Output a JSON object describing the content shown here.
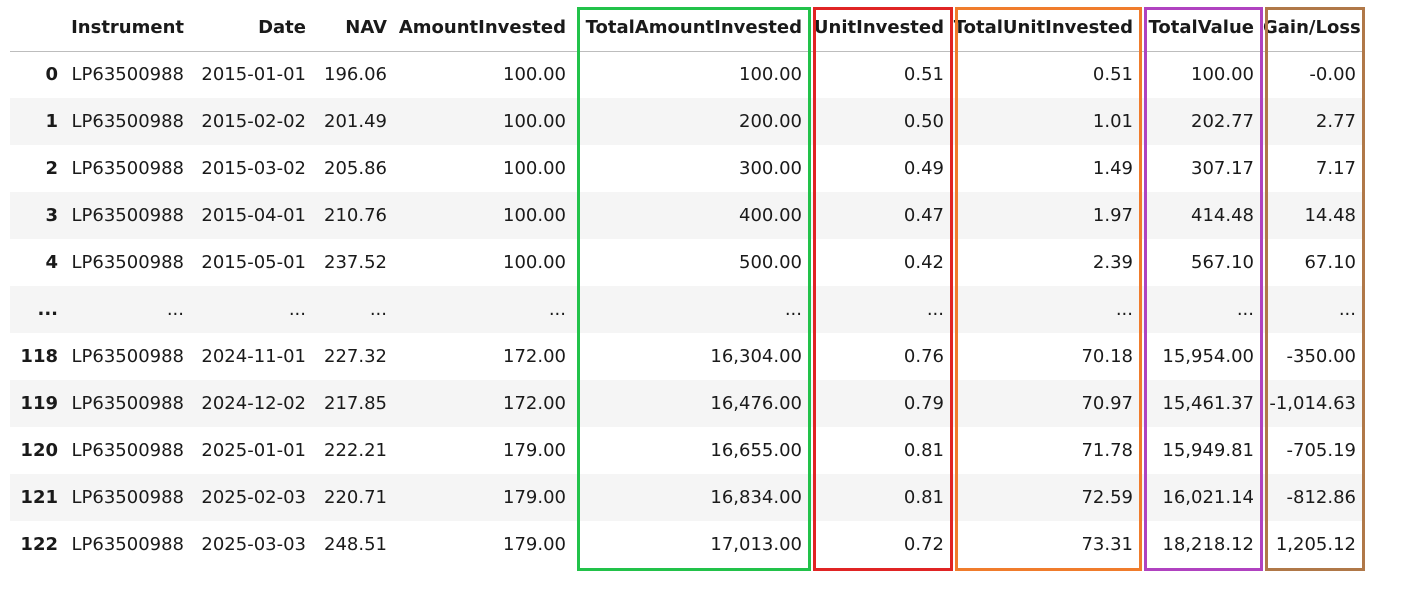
{
  "columns": [
    "",
    "Instrument",
    "Date",
    "NAV",
    "AmountInvested",
    "TotalAmountInvested",
    "UnitInvested",
    "TotalUnitInvested",
    "TotalValue",
    "Gain/Loss"
  ],
  "rows": [
    {
      "index": "0",
      "cells": [
        "LP63500988",
        "2015-01-01",
        "196.06",
        "100.00",
        "100.00",
        "0.51",
        "0.51",
        "100.00",
        "-0.00"
      ]
    },
    {
      "index": "1",
      "cells": [
        "LP63500988",
        "2015-02-02",
        "201.49",
        "100.00",
        "200.00",
        "0.50",
        "1.01",
        "202.77",
        "2.77"
      ]
    },
    {
      "index": "2",
      "cells": [
        "LP63500988",
        "2015-03-02",
        "205.86",
        "100.00",
        "300.00",
        "0.49",
        "1.49",
        "307.17",
        "7.17"
      ]
    },
    {
      "index": "3",
      "cells": [
        "LP63500988",
        "2015-04-01",
        "210.76",
        "100.00",
        "400.00",
        "0.47",
        "1.97",
        "414.48",
        "14.48"
      ]
    },
    {
      "index": "4",
      "cells": [
        "LP63500988",
        "2015-05-01",
        "237.52",
        "100.00",
        "500.00",
        "0.42",
        "2.39",
        "567.10",
        "67.10"
      ]
    },
    {
      "index": "...",
      "cells": [
        "...",
        "...",
        "...",
        "...",
        "...",
        "...",
        "...",
        "...",
        "..."
      ]
    },
    {
      "index": "118",
      "cells": [
        "LP63500988",
        "2024-11-01",
        "227.32",
        "172.00",
        "16,304.00",
        "0.76",
        "70.18",
        "15,954.00",
        "-350.00"
      ]
    },
    {
      "index": "119",
      "cells": [
        "LP63500988",
        "2024-12-02",
        "217.85",
        "172.00",
        "16,476.00",
        "0.79",
        "70.97",
        "15,461.37",
        "-1,014.63"
      ]
    },
    {
      "index": "120",
      "cells": [
        "LP63500988",
        "2025-01-01",
        "222.21",
        "179.00",
        "16,655.00",
        "0.81",
        "71.78",
        "15,949.81",
        "-705.19"
      ]
    },
    {
      "index": "121",
      "cells": [
        "LP63500988",
        "2025-02-03",
        "220.71",
        "179.00",
        "16,834.00",
        "0.81",
        "72.59",
        "16,021.14",
        "-812.86"
      ]
    },
    {
      "index": "122",
      "cells": [
        "LP63500988",
        "2025-03-03",
        "248.51",
        "179.00",
        "17,013.00",
        "0.72",
        "73.31",
        "18,218.12",
        "1,205.12"
      ]
    }
  ],
  "highlights": [
    {
      "column": "TotalAmountInvested",
      "color": "#22c24a"
    },
    {
      "column": "UnitInvested",
      "color": "#e02424"
    },
    {
      "column": "TotalUnitInvested",
      "color": "#f07c2c"
    },
    {
      "column": "TotalValue",
      "color": "#b042c0"
    },
    {
      "column": "Gain/Loss",
      "color": "#b07848"
    }
  ]
}
